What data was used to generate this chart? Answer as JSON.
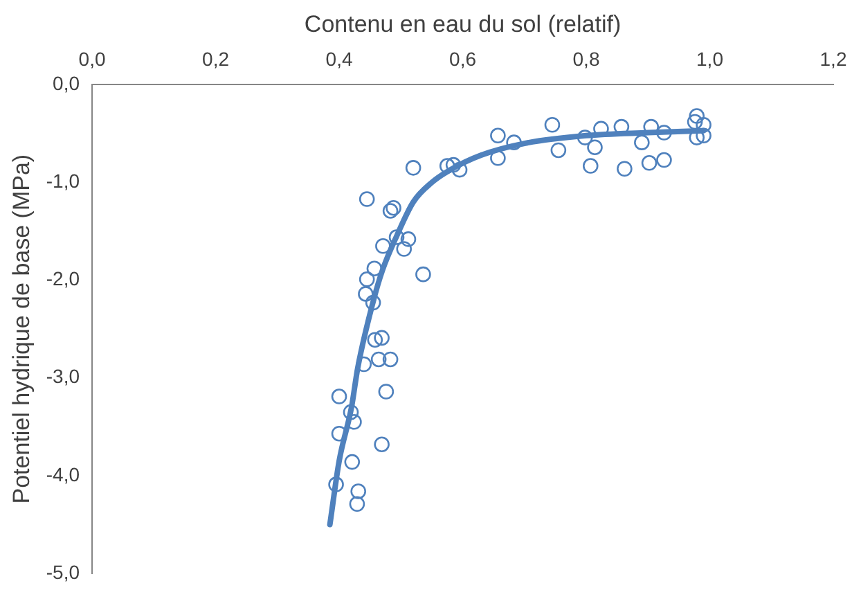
{
  "chart_data": {
    "type": "scatter",
    "xlabel": "Contenu en eau du sol (relatif)",
    "ylabel": "Potentiel hydrique de base (MPa)",
    "xlim": [
      0,
      1.2
    ],
    "xticks": [
      {
        "value": 0,
        "label": "0,0"
      },
      {
        "value": 0.2,
        "label": "0,2"
      },
      {
        "value": 0.4,
        "label": "0,4"
      },
      {
        "value": 0.6,
        "label": "0,6"
      },
      {
        "value": 0.8,
        "label": "0,8"
      },
      {
        "value": 1.0,
        "label": "1,0"
      },
      {
        "value": 1.2,
        "label": "1,2"
      }
    ],
    "ylim": [
      -5,
      0
    ],
    "yticks": [
      {
        "value": -5,
        "label": "-5,0"
      },
      {
        "value": -4,
        "label": "-4,0"
      },
      {
        "value": -3,
        "label": "-3,0"
      },
      {
        "value": -2,
        "label": "-2,0"
      },
      {
        "value": -1,
        "label": "-1,0"
      },
      {
        "value": 0,
        "label": "0,0"
      }
    ],
    "grid": false,
    "legend": false,
    "marker": "circle",
    "series": [
      {
        "color": "#4f81bd",
        "x": [
          0.445,
          0.483,
          0.488,
          0.493,
          0.471,
          0.505,
          0.512,
          0.536,
          0.457,
          0.445,
          0.443,
          0.455,
          0.458,
          0.469,
          0.44,
          0.464,
          0.483,
          0.4,
          0.476,
          0.419,
          0.424,
          0.4,
          0.469,
          0.421,
          0.395,
          0.431,
          0.429,
          0.52,
          0.575,
          0.585,
          0.595,
          0.657,
          0.683,
          0.657,
          0.745,
          0.755,
          0.798,
          0.814,
          0.807,
          0.824,
          0.857,
          0.862,
          0.89,
          0.905,
          0.902,
          0.926,
          0.926,
          0.979,
          0.976,
          0.99,
          0.979,
          0.99
        ],
        "values": [
          -1.17,
          -1.29,
          -1.26,
          -1.56,
          -1.65,
          -1.68,
          -1.58,
          -1.94,
          -1.88,
          -1.99,
          -2.14,
          -2.23,
          -2.61,
          -2.59,
          -2.86,
          -2.81,
          -2.81,
          -3.19,
          -3.14,
          -3.35,
          -3.45,
          -3.57,
          -3.68,
          -3.86,
          -4.09,
          -4.16,
          -4.29,
          -0.85,
          -0.83,
          -0.82,
          -0.87,
          -0.52,
          -0.59,
          -0.75,
          -0.41,
          -0.67,
          -0.54,
          -0.64,
          -0.83,
          -0.45,
          -0.43,
          -0.86,
          -0.59,
          -0.43,
          -0.8,
          -0.49,
          -0.77,
          -0.32,
          -0.38,
          -0.41,
          -0.54,
          -0.52
        ]
      },
      {
        "type": "line",
        "color": "#4f81bd",
        "marker": "none",
        "line_style": "solid",
        "x": [
          0.385,
          0.4,
          0.42,
          0.43,
          0.455,
          0.47,
          0.493,
          0.52,
          0.55,
          0.58,
          0.63,
          0.7,
          0.8,
          0.9,
          0.99
        ],
        "values": [
          -4.5,
          -3.85,
          -3.3,
          -2.9,
          -2.22,
          -1.9,
          -1.55,
          -1.2,
          -1.0,
          -0.87,
          -0.72,
          -0.6,
          -0.52,
          -0.49,
          -0.47
        ]
      }
    ]
  }
}
